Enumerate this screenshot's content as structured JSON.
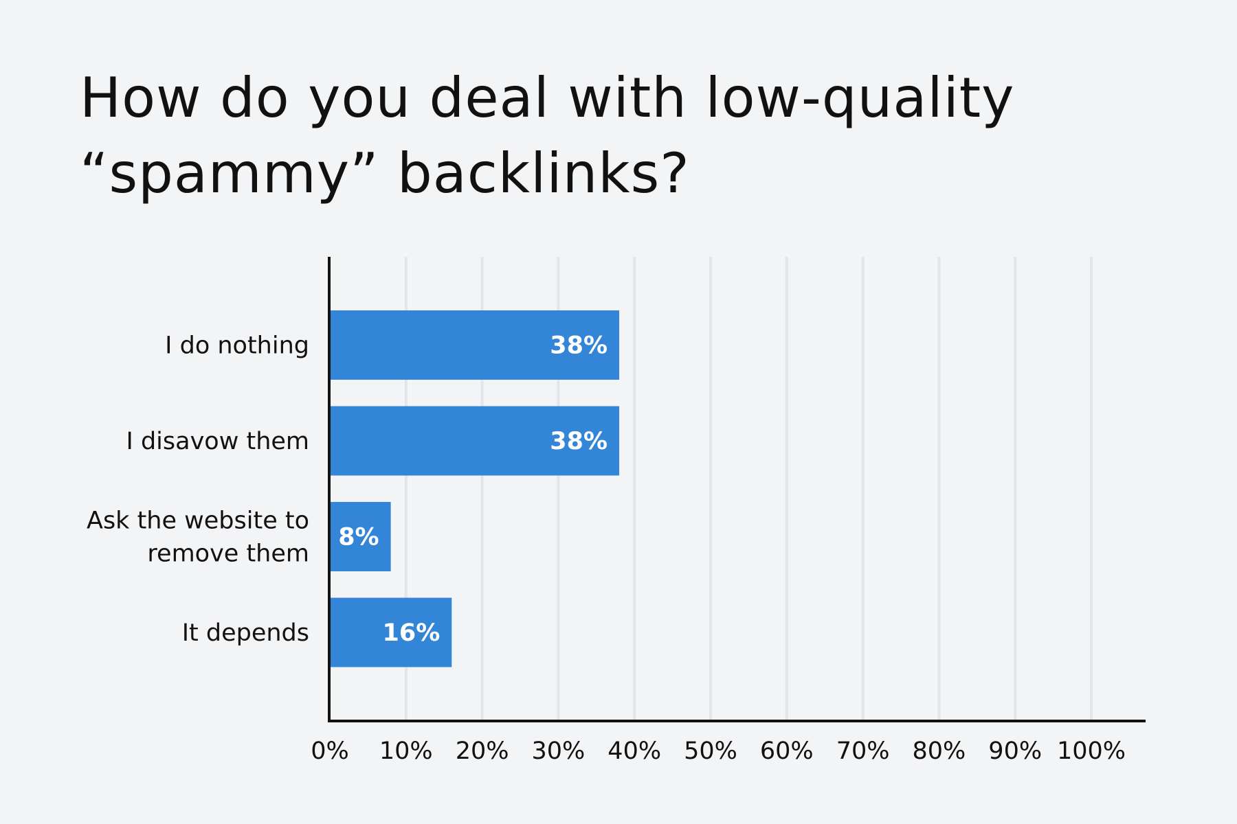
{
  "chart_data": {
    "type": "bar",
    "orientation": "horizontal",
    "title": "How do you deal with low-quality “spammy” backlinks?",
    "categories": [
      [
        "I do nothing"
      ],
      [
        "I disavow them"
      ],
      [
        "Ask the website to",
        "remove them"
      ],
      [
        "It depends"
      ]
    ],
    "values": [
      38,
      38,
      8,
      16
    ],
    "value_labels": [
      "38%",
      "38%",
      "8%",
      "16%"
    ],
    "xlim": [
      0,
      100
    ],
    "ticks": [
      0,
      10,
      20,
      30,
      40,
      50,
      60,
      70,
      80,
      90,
      100
    ],
    "tick_labels": [
      "0%",
      "10%",
      "20%",
      "30%",
      "40%",
      "50%",
      "60%",
      "70%",
      "80%",
      "90%",
      "100%"
    ],
    "grid": true,
    "legend": "none",
    "colors": {
      "bar": "#3385d8",
      "grid": "#e3e5e8",
      "axis": "#111111",
      "background": "#f3f4f6"
    }
  }
}
